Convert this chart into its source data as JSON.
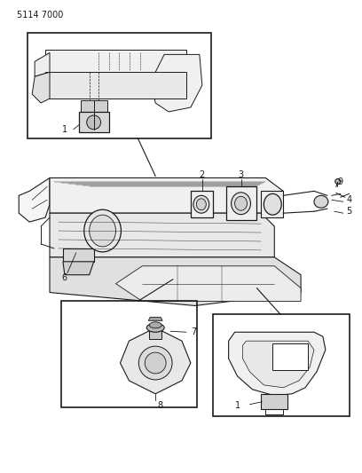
{
  "page_id": "5114 7000",
  "background_color": "#ffffff",
  "line_color": "#1a1a1a",
  "fig_width": 4.08,
  "fig_height": 5.33,
  "dpi": 100,
  "page_id_fontsize": 7
}
